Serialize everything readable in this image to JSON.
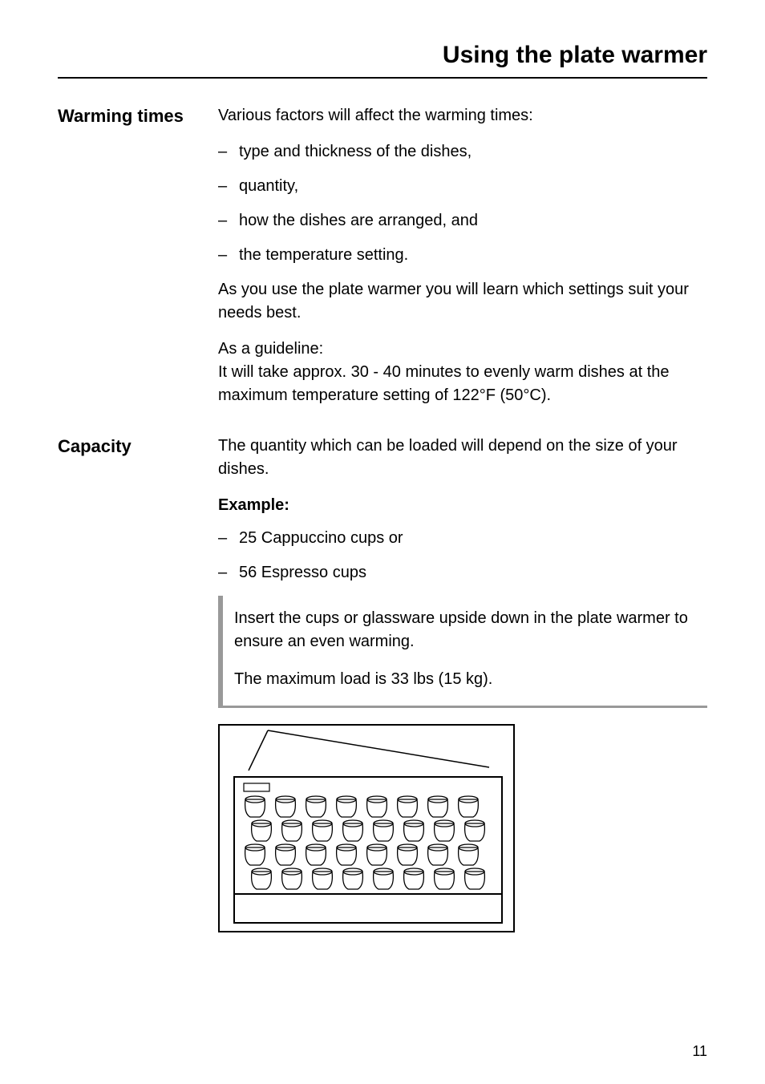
{
  "page_title": "Using the plate warmer",
  "page_number": "11",
  "sections": [
    {
      "heading": "Warming times",
      "intro": "Various factors will affect the warming times:",
      "bullets": [
        "type and thickness of the dishes,",
        "quantity,",
        "how the dishes are arranged, and",
        "the temperature setting."
      ],
      "para1": "As you use the plate warmer you will learn which settings suit your needs best.",
      "para2a": "As a guideline:",
      "para2b": "It will take approx. 30 - 40 minutes to evenly warm dishes at the maximum temperature setting of 122°F (50°C)."
    },
    {
      "heading": "Capacity",
      "intro": "The quantity which can be loaded will depend on the size of your dishes.",
      "example_label": "Example:",
      "bullets": [
        "25 Cappuccino cups or",
        "56 Espresso cups"
      ],
      "callout1": "Insert the cups or glassware upside down in the plate warmer to ensure an even warming.",
      "callout2": "The maximum load is 33 lbs (15 kg)."
    }
  ],
  "diagram": {
    "cols": 8,
    "rows": 4
  },
  "colors": {
    "text": "#000000",
    "rule": "#000000",
    "callout_border": "#999999",
    "background": "#ffffff"
  },
  "fonts": {
    "title_size": 30,
    "heading_size": 22,
    "body_size": 20
  }
}
